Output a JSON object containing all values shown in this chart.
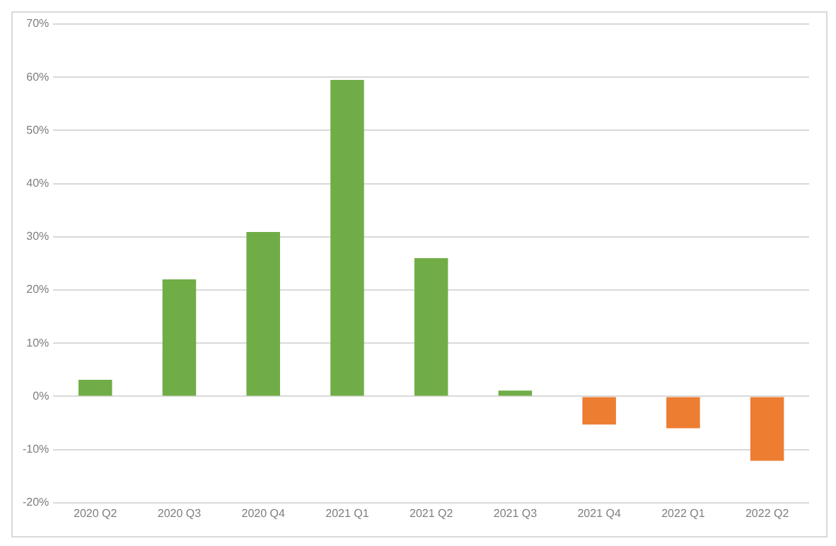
{
  "chart_data": {
    "type": "bar",
    "categories": [
      "2020 Q2",
      "2020 Q3",
      "2020 Q4",
      "2021 Q1",
      "2021 Q2",
      "2021 Q3",
      "2021 Q4",
      "2022 Q1",
      "2022 Q2"
    ],
    "values": [
      3.1,
      22.0,
      30.9,
      59.5,
      26.0,
      1.1,
      -5.3,
      -6.0,
      -12.1
    ],
    "colors": [
      "#70ad47",
      "#70ad47",
      "#70ad47",
      "#70ad47",
      "#70ad47",
      "#70ad47",
      "#ed7d31",
      "#ed7d31",
      "#ed7d31"
    ],
    "ylim": [
      -20,
      70
    ],
    "yticks": [
      {
        "value": -20,
        "label": "-20%"
      },
      {
        "value": -10,
        "label": "-10%"
      },
      {
        "value": 0,
        "label": "0%"
      },
      {
        "value": 10,
        "label": "10%"
      },
      {
        "value": 20,
        "label": "20%"
      },
      {
        "value": 30,
        "label": "30%"
      },
      {
        "value": 40,
        "label": "40%"
      },
      {
        "value": 50,
        "label": "50%"
      },
      {
        "value": 60,
        "label": "60%"
      },
      {
        "value": 70,
        "label": "70%"
      }
    ],
    "grid": "y",
    "legend": false
  }
}
